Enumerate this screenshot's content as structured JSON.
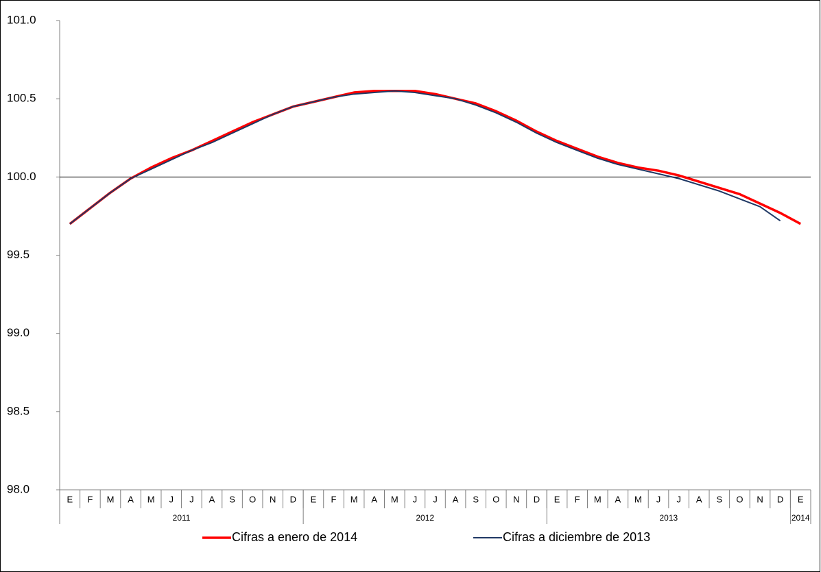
{
  "chart_data": {
    "type": "line",
    "categories": [
      "E",
      "F",
      "M",
      "A",
      "M",
      "J",
      "J",
      "A",
      "S",
      "O",
      "N",
      "D",
      "E",
      "F",
      "M",
      "A",
      "M",
      "J",
      "J",
      "A",
      "S",
      "O",
      "N",
      "D",
      "E",
      "F",
      "M",
      "A",
      "M",
      "J",
      "J",
      "A",
      "S",
      "O",
      "N",
      "D",
      "E"
    ],
    "year_labels": [
      "2011",
      null,
      null,
      null,
      null,
      null,
      null,
      null,
      null,
      null,
      null,
      null,
      "2012",
      null,
      null,
      null,
      null,
      null,
      null,
      null,
      null,
      null,
      null,
      null,
      "2013",
      null,
      null,
      null,
      null,
      null,
      null,
      null,
      null,
      null,
      null,
      null,
      "2014"
    ],
    "series": [
      {
        "name": "Cifras a enero de 2014",
        "color": "#ff0000",
        "width": 3.5,
        "values": [
          99.7,
          99.8,
          99.9,
          99.99,
          100.06,
          100.12,
          100.17,
          100.23,
          100.29,
          100.35,
          100.4,
          100.45,
          100.48,
          100.51,
          100.54,
          100.55,
          100.55,
          100.55,
          100.53,
          100.5,
          100.47,
          100.42,
          100.36,
          100.29,
          100.23,
          100.18,
          100.13,
          100.09,
          100.06,
          100.04,
          100.01,
          99.97,
          99.93,
          99.89,
          99.83,
          99.77,
          99.7
        ]
      },
      {
        "name": "Cifras a diciembre de 2013",
        "color": "#1f3864",
        "width": 2,
        "values": [
          99.7,
          99.8,
          99.9,
          99.99,
          100.05,
          100.11,
          100.17,
          100.22,
          100.28,
          100.34,
          100.4,
          100.45,
          100.48,
          100.51,
          100.53,
          100.54,
          100.55,
          100.54,
          100.52,
          100.5,
          100.46,
          100.41,
          100.35,
          100.28,
          100.22,
          100.17,
          100.12,
          100.08,
          100.05,
          100.02,
          99.99,
          99.95,
          99.91,
          99.86,
          99.81,
          99.72,
          null
        ]
      }
    ],
    "ylim": [
      98.0,
      101.0
    ],
    "yticks": [
      {
        "value": 98.0,
        "label": "98.0"
      },
      {
        "value": 98.5,
        "label": "98.5"
      },
      {
        "value": 99.0,
        "label": "99.0"
      },
      {
        "value": 99.5,
        "label": "99.5"
      },
      {
        "value": 100.0,
        "label": "100.0"
      },
      {
        "value": 100.5,
        "label": "100.5"
      },
      {
        "value": 101.0,
        "label": "101.0"
      }
    ],
    "reference_line": 100.0,
    "grid": false,
    "legend": "bottom"
  }
}
